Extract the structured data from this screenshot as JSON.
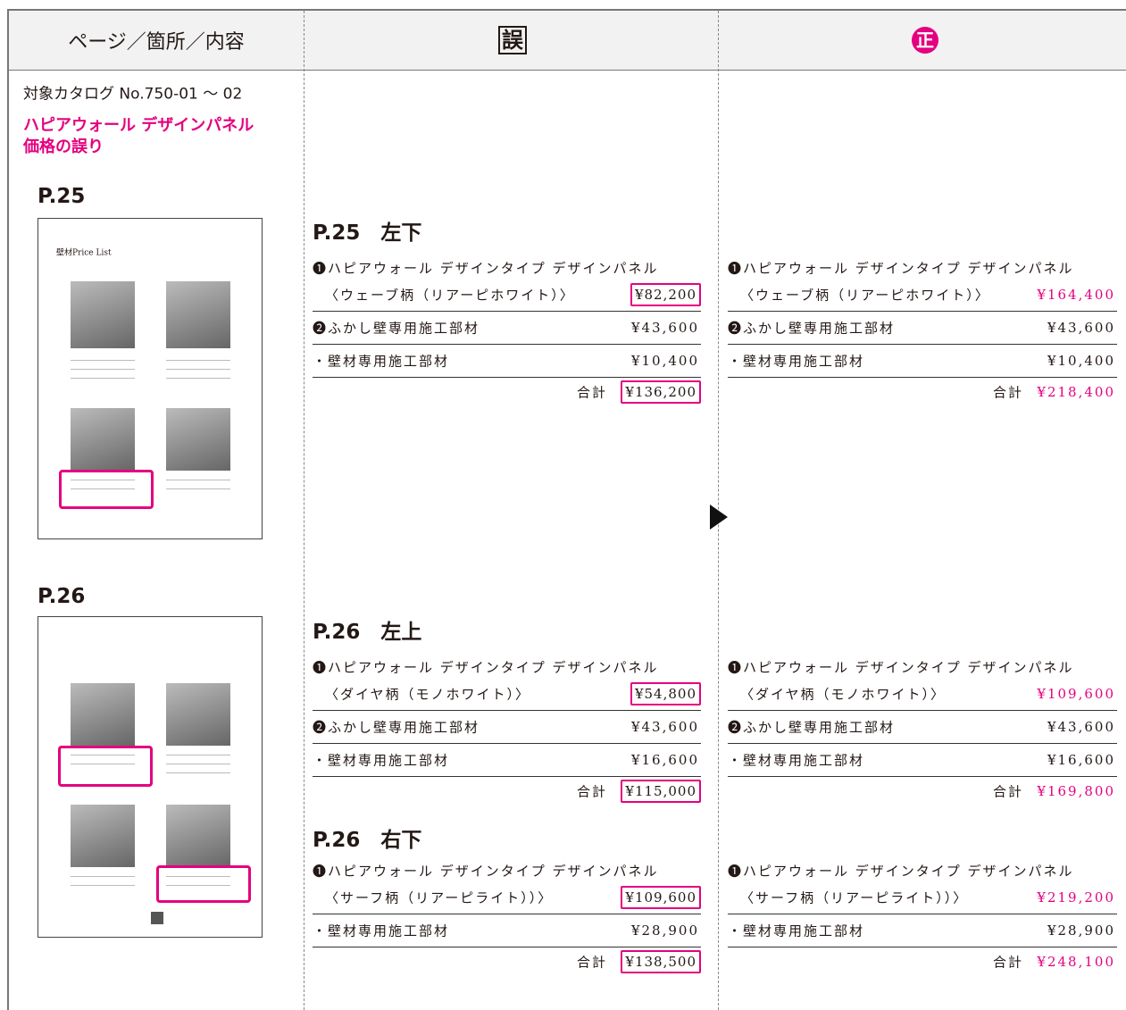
{
  "header": {
    "col1": "ページ／箇所／内容",
    "col2": "誤",
    "col3": "正"
  },
  "left": {
    "catalog": "対象カタログ No.750-01 ～ 02",
    "subject": [
      "ハピアウォール デザインパネル",
      "価格の誤り"
    ],
    "pages": [
      {
        "label": "P.25",
        "thumb_title": "壁材Price List"
      },
      {
        "label": "P.26"
      }
    ]
  },
  "sections": [
    {
      "heading": "P.25　左下",
      "wrong": {
        "rows": [
          {
            "label": "❶ハピアウォール デザインタイプ デザインパネル",
            "sub": "〈ウェーブ柄（リアーピホワイト）〉",
            "price": "¥82,200"
          },
          {
            "label": "❷ふかし壁専用施工部材",
            "price": "¥43,600"
          },
          {
            "label": "・壁材専用施工部材",
            "price": "¥10,400"
          }
        ],
        "total_label": "合計",
        "total": "¥136,200"
      },
      "correct": {
        "rows": [
          {
            "label": "❶ハピアウォール デザインタイプ デザインパネル",
            "sub": "〈ウェーブ柄（リアーピホワイト）〉",
            "price": "¥164,400"
          },
          {
            "label": "❷ふかし壁専用施工部材",
            "price": "¥43,600"
          },
          {
            "label": "・壁材専用施工部材",
            "price": "¥10,400"
          }
        ],
        "total_label": "合計",
        "total": "¥218,400"
      }
    },
    {
      "heading": "P.26　左上",
      "wrong": {
        "rows": [
          {
            "label": "❶ハピアウォール デザインタイプ デザインパネル",
            "sub": "〈ダイヤ柄（モノホワイト）〉",
            "price": "¥54,800"
          },
          {
            "label": "❷ふかし壁専用施工部材",
            "price": "¥43,600"
          },
          {
            "label": "・壁材専用施工部材",
            "price": "¥16,600"
          }
        ],
        "total_label": "合計",
        "total": "¥115,000"
      },
      "correct": {
        "rows": [
          {
            "label": "❶ハピアウォール デザインタイプ デザインパネル",
            "sub": "〈ダイヤ柄（モノホワイト）〉",
            "price": "¥109,600"
          },
          {
            "label": "❷ふかし壁専用施工部材",
            "price": "¥43,600"
          },
          {
            "label": "・壁材専用施工部材",
            "price": "¥16,600"
          }
        ],
        "total_label": "合計",
        "total": "¥169,800"
      }
    },
    {
      "heading": "P.26　右下",
      "wrong": {
        "rows": [
          {
            "label": "❶ハピアウォール デザインタイプ デザインパネル",
            "sub": "〈サーフ柄（リアーピライト））〉",
            "price": "¥109,600"
          },
          {
            "label": "・壁材専用施工部材",
            "price": "¥28,900"
          }
        ],
        "total_label": "合計",
        "total": "¥138,500"
      },
      "correct": {
        "rows": [
          {
            "label": "❶ハピアウォール デザインタイプ デザインパネル",
            "sub": "〈サーフ柄（リアーピライト））〉",
            "price": "¥219,200"
          },
          {
            "label": "・壁材専用施工部材",
            "price": "¥28,900"
          }
        ],
        "total_label": "合計",
        "total": "¥248,100"
      }
    }
  ]
}
